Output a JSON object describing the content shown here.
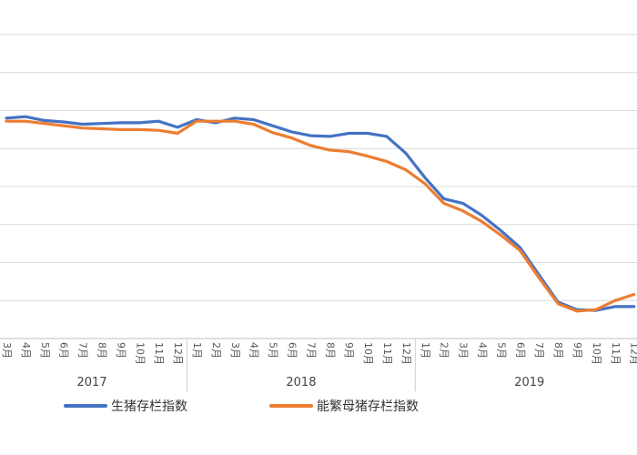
{
  "chart_data": {
    "type": "line",
    "x_months": [
      "3月",
      "4月",
      "5月",
      "6月",
      "7月",
      "8月",
      "9月",
      "10月",
      "11月",
      "12月",
      "1月",
      "2月",
      "3月",
      "4月",
      "5月",
      "6月",
      "7月",
      "8月",
      "9月",
      "10月",
      "11月",
      "12月",
      "1月",
      "2月",
      "3月",
      "4月",
      "5月",
      "6月",
      "7月",
      "8月",
      "9月",
      "10月",
      "11月",
      "12月"
    ],
    "years": [
      {
        "label": "2017",
        "start_index": 0,
        "end_index": 9
      },
      {
        "label": "2018",
        "start_index": 10,
        "end_index": 21
      },
      {
        "label": "2019",
        "start_index": 22,
        "end_index": 33
      }
    ],
    "series": [
      {
        "name": "生猪存栏指数",
        "color": "#4472C4",
        "values": [
          95.0,
          96.0,
          93.5,
          92.5,
          91.0,
          91.5,
          92.0,
          92.0,
          93.0,
          89.0,
          94.0,
          92.0,
          95.0,
          94.0,
          90.0,
          86.0,
          83.5,
          83.0,
          85.0,
          85.0,
          83.0,
          72.0,
          56.0,
          42.0,
          39.0,
          31.0,
          21.0,
          10.0,
          -8.0,
          -26.0,
          -31.0,
          -31.5,
          -29.0,
          -29.0
        ]
      },
      {
        "name": "能繁母猪存栏指数",
        "color": "#ED7D31",
        "values": [
          93.0,
          93.0,
          91.5,
          90.0,
          88.5,
          88.0,
          87.5,
          87.5,
          87.0,
          85.0,
          93.0,
          93.0,
          93.0,
          91.0,
          85.5,
          82.0,
          77.0,
          74.0,
          73.0,
          70.0,
          66.5,
          61.0,
          52.0,
          39.0,
          34.0,
          27.0,
          18.0,
          8.0,
          -10.0,
          -27.0,
          -32.0,
          -31.0,
          -25.0,
          -21.0
        ]
      }
    ],
    "ylim": [
      -50,
      150
    ],
    "grid": true,
    "legend_position": "bottom"
  }
}
